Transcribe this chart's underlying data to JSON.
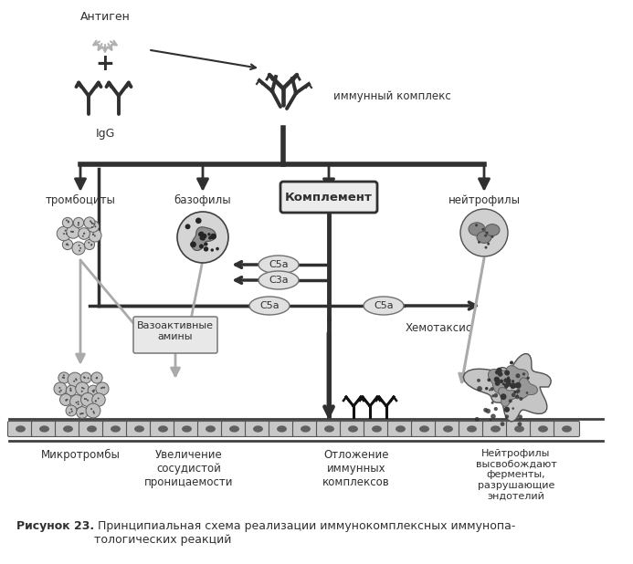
{
  "bg_color": "#ffffff",
  "antigen_label": "Антиген",
  "igg_label": "IgG",
  "immune_complex_label": "иммунный комплекс",
  "complement_label": "Комплемент",
  "trombocytes_label": "тромбоциты",
  "basophils_label": "базофилы",
  "neutrophils_label": "нейтрофилы",
  "vasoactive_label": "Вазоактивные\nамины",
  "c5a_label1": "C5a",
  "c3a_label": "C3a",
  "c5a_label2": "C5a",
  "c5a_label3": "C5a",
  "chemotaxis_label": "Хемотаксис",
  "microtrombi_label": "Микротромбы",
  "vascular_label": "Увеличение\nсосудистой\nпроницаемости",
  "deposit_label": "Отложение\nиммунных\nкомплексов",
  "neutrophil_label": "Нейтрофилы\nвысвобождают\nферменты,\nразрушающие\nэндотелий",
  "caption_bold": "Рисунок 23.",
  "caption_normal": " Принципиальная схема реализации иммунокомплексных иммунопа-\nтологических реакций",
  "dark": "#303030",
  "mid": "#808080",
  "light": "#b0b0b0",
  "very_light": "#d8d8d8"
}
